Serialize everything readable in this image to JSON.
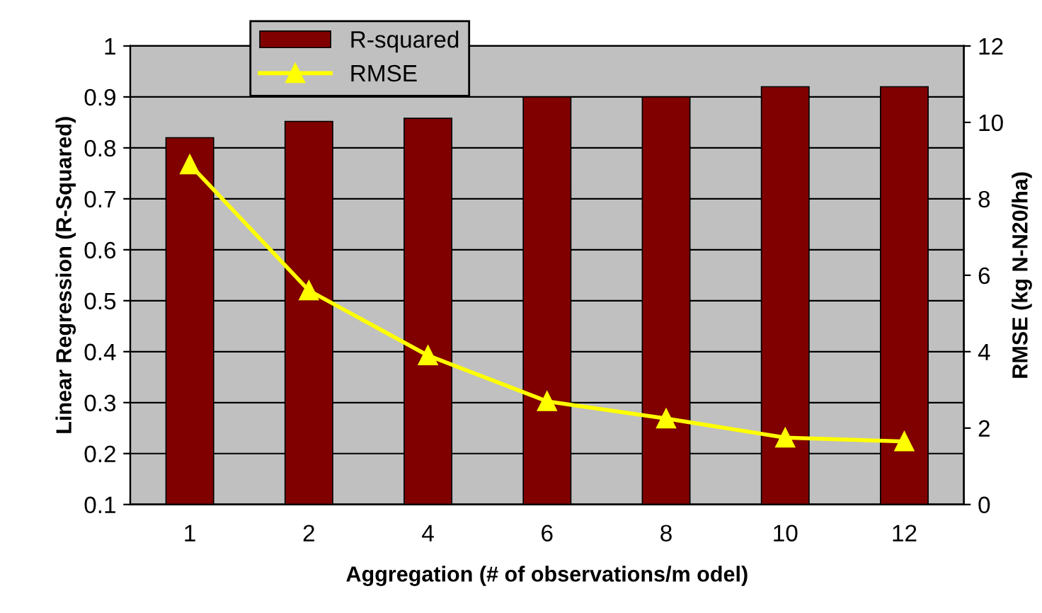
{
  "chart_data": {
    "type": "bar",
    "xlabel": "Aggregation (# of observations/m odel)",
    "ylabel": "Linear Regression (R-Squared)",
    "y2label": "RMSE (kg N-N20/ha)",
    "categories": [
      "1",
      "2",
      "4",
      "6",
      "8",
      "10",
      "12"
    ],
    "series": [
      {
        "name": "R-squared",
        "color": "#800000",
        "values": [
          0.82,
          0.852,
          0.858,
          0.9,
          0.9,
          0.92,
          0.92
        ]
      },
      {
        "name": "RMSE",
        "type": "line",
        "axis": "y2",
        "color": "#ffff00",
        "marker": "triangle",
        "values": [
          8.9,
          5.6,
          3.9,
          2.7,
          2.25,
          1.75,
          1.65
        ]
      }
    ],
    "ylim": [
      0.1,
      1
    ],
    "yticks": [
      0.1,
      0.2,
      0.3,
      0.4,
      0.5,
      0.6,
      0.7,
      0.8,
      0.9,
      1
    ],
    "y2lim": [
      0,
      12
    ],
    "y2ticks": [
      0,
      2,
      4,
      6,
      8,
      10,
      12
    ],
    "grid": "y",
    "legend": "top left"
  }
}
